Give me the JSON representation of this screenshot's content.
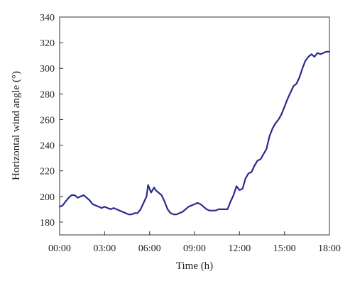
{
  "chart_data": {
    "type": "line",
    "title": "",
    "xlabel": "Time (h)",
    "ylabel": "Horizontal wind angle (°)",
    "x_ticks": [
      "00:00",
      "03:00",
      "06:00",
      "09:00",
      "12:00",
      "15:00",
      "18:00"
    ],
    "y_ticks": [
      180,
      200,
      220,
      240,
      260,
      280,
      300,
      320,
      340
    ],
    "xlim_hours": [
      0,
      18
    ],
    "ylim": [
      170,
      340
    ],
    "grid": false,
    "line_color": "#2b2a8c",
    "series": [
      {
        "x_hours": [
          0.0,
          0.2,
          0.4,
          0.6,
          0.8,
          1.0,
          1.2,
          1.4,
          1.6,
          1.8,
          2.0,
          2.2,
          2.4,
          2.6,
          2.8,
          3.0,
          3.2,
          3.4,
          3.6,
          3.8,
          4.0,
          4.2,
          4.4,
          4.6,
          4.8,
          5.0,
          5.2,
          5.4,
          5.6,
          5.8,
          5.9,
          6.0,
          6.1,
          6.2,
          6.3,
          6.4,
          6.6,
          6.8,
          7.0,
          7.2,
          7.4,
          7.6,
          7.8,
          8.0,
          8.2,
          8.4,
          8.6,
          8.8,
          9.0,
          9.2,
          9.4,
          9.6,
          9.8,
          10.0,
          10.2,
          10.4,
          10.6,
          10.8,
          11.0,
          11.2,
          11.4,
          11.6,
          11.8,
          12.0,
          12.2,
          12.4,
          12.6,
          12.8,
          13.0,
          13.2,
          13.4,
          13.6,
          13.8,
          14.0,
          14.2,
          14.4,
          14.6,
          14.8,
          15.0,
          15.2,
          15.4,
          15.6,
          15.8,
          16.0,
          16.2,
          16.4,
          16.6,
          16.8,
          17.0,
          17.2,
          17.4,
          17.6,
          17.8,
          18.0
        ],
        "values": [
          192,
          193,
          196,
          199,
          201,
          201,
          199,
          200,
          201,
          199,
          197,
          194,
          193,
          192,
          191,
          192,
          191,
          190,
          191,
          190,
          189,
          188,
          187,
          186,
          186,
          187,
          187,
          190,
          195,
          200,
          209,
          206,
          203,
          205,
          207,
          205,
          203,
          201,
          196,
          190,
          187,
          186,
          186,
          187,
          188,
          190,
          192,
          193,
          194,
          195,
          194,
          192,
          190,
          189,
          189,
          189,
          190,
          190,
          190,
          190,
          196,
          201,
          208,
          205,
          206,
          214,
          218,
          219,
          224,
          228,
          229,
          233,
          237,
          247,
          253,
          257,
          260,
          264,
          270,
          276,
          281,
          286,
          288,
          293,
          300,
          306,
          309,
          311,
          309,
          312,
          311,
          312,
          313,
          313
        ]
      }
    ]
  }
}
